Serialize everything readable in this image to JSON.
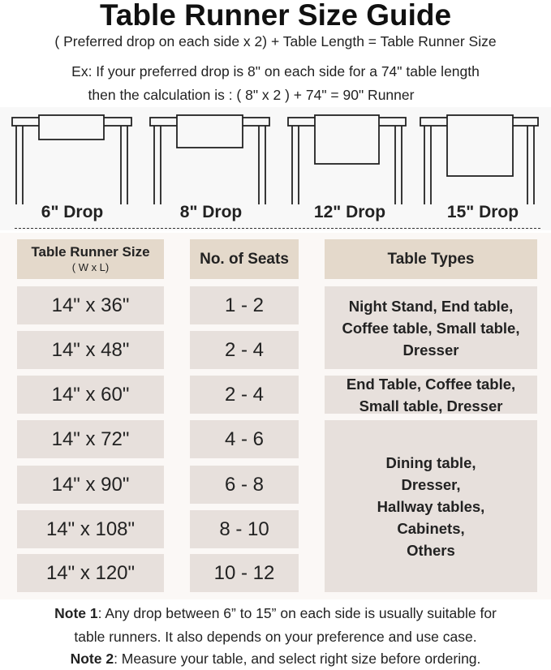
{
  "title": "Table Runner Size Guide",
  "subtitle_lines": [
    "( Preferred drop on each side x 2) + Table Length = Table Runner Size",
    "Ex: If your preferred drop is 8\" on each side for a 74\" table length",
    "then the calculation is : ( 8\" x 2 ) + 74\" = 90\" Runner"
  ],
  "drops": [
    {
      "label": "6\" Drop",
      "inches": 6
    },
    {
      "label": "8\" Drop",
      "inches": 8
    },
    {
      "label": "12\" Drop",
      "inches": 12
    },
    {
      "label": "15\" Drop",
      "inches": 15
    }
  ],
  "table": {
    "headers": {
      "size": "Table Runner Size",
      "size_sub": "( W x L)",
      "seats": "No. of Seats",
      "types": "Table Types"
    },
    "rows": [
      {
        "size": "14\" x 36\"",
        "seats": "1 - 2"
      },
      {
        "size": "14\" x 48\"",
        "seats": "2 - 4"
      },
      {
        "size": "14\" x 60\"",
        "seats": "2 - 4"
      },
      {
        "size": "14\" x 72\"",
        "seats": "4 - 6"
      },
      {
        "size": "14\" x 90\"",
        "seats": "6 - 8"
      },
      {
        "size": "14\" x 108\"",
        "seats": "8 - 10"
      },
      {
        "size": "14\" x 120\"",
        "seats": "10 - 12"
      }
    ],
    "types": [
      "Night Stand, End table, Coffee table, Small table, Dresser",
      "End Table, Coffee table, Small table, Dresser",
      "Dining table, Dresser, Hallway tables, Cabinets, Others"
    ]
  },
  "notes": [
    {
      "label": "Note 1",
      "text": ": Any drop between 6” to 15” on each side is usually suitable for"
    },
    {
      "label": "",
      "text": "table runners. It also depends on your preference and use case."
    },
    {
      "label": "Note 2",
      "text": ": Measure your table, and select right size before ordering."
    }
  ],
  "colors": {
    "header_bg": "#e4d9cb",
    "cell_bg": "#e7e0dc",
    "panel_bg": "#fbf8f6"
  }
}
